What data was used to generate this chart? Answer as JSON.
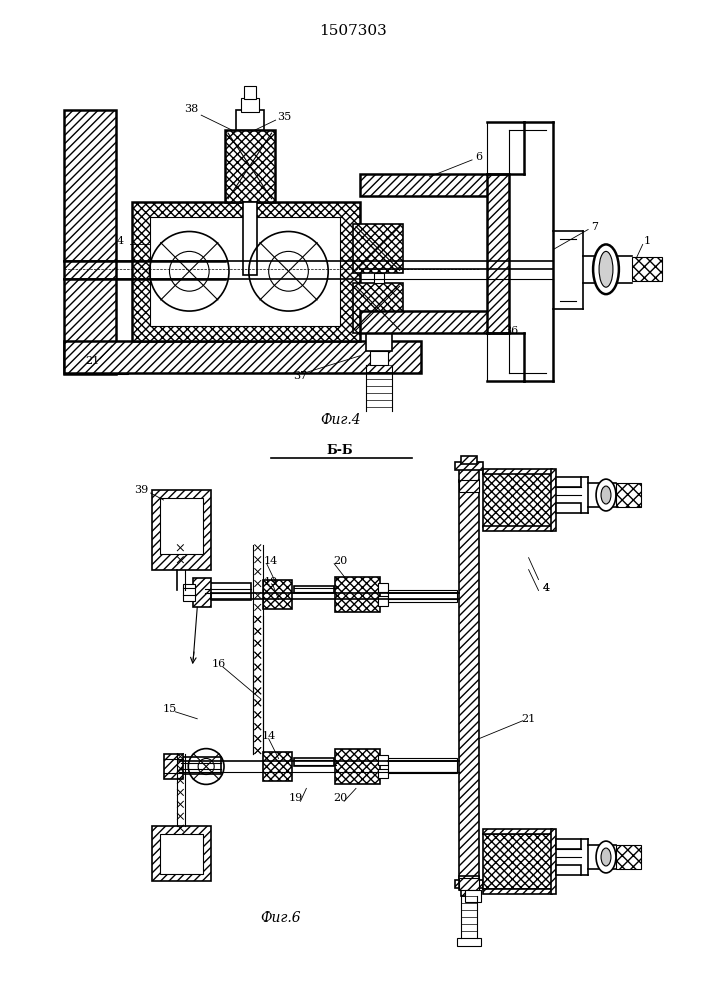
{
  "title": "1507303",
  "fig4_label": "Фиг.4",
  "fig6_label": "Фиг.6",
  "fig6_section": "Б-Б",
  "bg_color": "#ffffff",
  "line_color": "#000000"
}
